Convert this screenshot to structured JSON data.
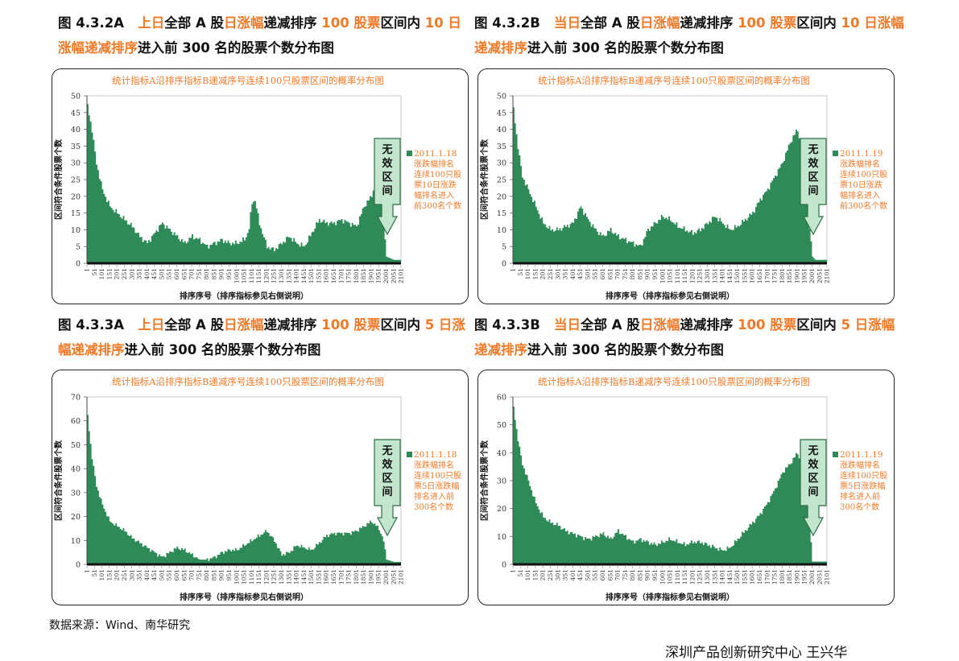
{
  "colors": {
    "accent": "#f07a28",
    "area": "#2e8b57",
    "box": "#c3e6cf",
    "box_border": "#2e6b45"
  },
  "captions": [
    {
      "prefix": "图 4.3.2A",
      "parts": [
        {
          "t": "上日",
          "hl": true
        },
        {
          "t": "全部 A 股",
          "hl": false
        },
        {
          "t": "日涨幅",
          "hl": true
        },
        {
          "t": "递减排序 ",
          "hl": false
        },
        {
          "t": "100 股票",
          "hl": true
        },
        {
          "t": "区间内 ",
          "hl": false
        },
        {
          "t": "10 日涨幅递减排序",
          "hl": true
        },
        {
          "t": "进入前 300 名的股票个数分布图",
          "hl": false
        }
      ]
    },
    {
      "prefix": "图 4.3.2B",
      "parts": [
        {
          "t": "当日",
          "hl": true
        },
        {
          "t": "全部 A 股",
          "hl": false
        },
        {
          "t": "日涨幅",
          "hl": true
        },
        {
          "t": "递减排序 ",
          "hl": false
        },
        {
          "t": "100 股票",
          "hl": true
        },
        {
          "t": "区间内 ",
          "hl": false
        },
        {
          "t": "10 日涨幅递减排序",
          "hl": true
        },
        {
          "t": "进入前 300 名的股票个数分布图",
          "hl": false
        }
      ]
    },
    {
      "prefix": "图 4.3.3A",
      "parts": [
        {
          "t": "上日",
          "hl": true
        },
        {
          "t": "全部 A 股",
          "hl": false
        },
        {
          "t": "日涨幅",
          "hl": true
        },
        {
          "t": "递减排序 ",
          "hl": false
        },
        {
          "t": "100 股票",
          "hl": true
        },
        {
          "t": "区间内 ",
          "hl": false
        },
        {
          "t": "5 日涨幅递减排序",
          "hl": true
        },
        {
          "t": "进入前 300 名的股票个数分布图",
          "hl": false
        }
      ]
    },
    {
      "prefix": "图 4.3.3B",
      "parts": [
        {
          "t": "当日",
          "hl": true
        },
        {
          "t": "全部 A 股",
          "hl": false
        },
        {
          "t": "日涨幅",
          "hl": true
        },
        {
          "t": "递减排序 ",
          "hl": false
        },
        {
          "t": "100 股票",
          "hl": true
        },
        {
          "t": "区间内 ",
          "hl": false
        },
        {
          "t": "5 日涨幅递减排序",
          "hl": true
        },
        {
          "t": "进入前 300 名的股票个数分布图",
          "hl": false
        }
      ]
    }
  ],
  "source": "数据来源：Wind、南华研究",
  "footer_partial": "深圳产品创新研究中心 王兴华",
  "chart_data": [
    {
      "type": "area",
      "title": "统计指标A沿排序指标B递减序号连续100只股票区间的概率分布图",
      "xlabel": "排序序号（排序指标参见右侧说明）",
      "ylabel": "区间符合条件股票个数",
      "ylim": [
        0,
        50
      ],
      "yticks": [
        0,
        5,
        10,
        15,
        20,
        25,
        30,
        35,
        40,
        45,
        50
      ],
      "x_start": 1,
      "x_end": 2101,
      "xtick_step": 50,
      "xticks_from": 1,
      "legend": {
        "date": "2011.1.18",
        "text": [
          "涨跌幅排名",
          "连续100只股",
          "票10日涨跌",
          "幅排名进入",
          "前300名个数"
        ]
      },
      "annotation": "无效区间",
      "x": [
        1,
        30,
        60,
        100,
        150,
        200,
        250,
        300,
        350,
        400,
        450,
        500,
        550,
        600,
        650,
        700,
        750,
        800,
        850,
        900,
        950,
        1000,
        1050,
        1080,
        1100,
        1120,
        1150,
        1200,
        1250,
        1300,
        1350,
        1400,
        1450,
        1500,
        1550,
        1600,
        1650,
        1700,
        1750,
        1800,
        1850,
        1900,
        1920,
        1950,
        1980,
        2000,
        2050,
        2101
      ],
      "y": [
        47,
        40,
        30,
        22,
        17,
        15,
        13,
        11,
        8,
        6,
        9,
        12,
        10,
        8,
        6,
        8,
        7,
        5,
        6,
        7,
        6,
        6,
        7,
        10,
        18,
        19,
        12,
        5,
        4,
        6,
        8,
        6,
        5,
        9,
        13,
        12,
        12,
        13,
        12,
        11,
        17,
        20,
        24,
        22,
        12,
        2,
        1,
        1
      ]
    },
    {
      "type": "area",
      "title": "统计指标A沿排序指标B递减序号连续100只股票区间的概率分布图",
      "xlabel": "排序序号（排序指标参见右侧说明）",
      "ylabel": "区间符合条件股票个数",
      "ylim": [
        0,
        50
      ],
      "yticks": [
        0,
        5,
        10,
        15,
        20,
        25,
        30,
        35,
        40,
        45,
        50
      ],
      "x_start": 1,
      "x_end": 2101,
      "xtick_step": 50,
      "xticks_from": 1,
      "legend": {
        "date": "2011.1.19",
        "text": [
          "涨跌幅排名",
          "连续100只股",
          "票10日涨跌",
          "幅排名进入",
          "前300名个数"
        ]
      },
      "annotation": "无效区间",
      "x": [
        1,
        30,
        60,
        100,
        150,
        200,
        250,
        300,
        350,
        400,
        450,
        500,
        550,
        600,
        650,
        700,
        750,
        800,
        850,
        900,
        950,
        1000,
        1050,
        1100,
        1150,
        1200,
        1250,
        1300,
        1350,
        1400,
        1450,
        1500,
        1550,
        1600,
        1650,
        1700,
        1750,
        1800,
        1850,
        1900,
        1950,
        1970,
        2000,
        2020,
        2050,
        2101
      ],
      "y": [
        46,
        35,
        26,
        22,
        17,
        12,
        10,
        10,
        11,
        12,
        17,
        13,
        10,
        8,
        10,
        8,
        7,
        6,
        5,
        10,
        12,
        14,
        13,
        11,
        10,
        9,
        10,
        12,
        14,
        12,
        10,
        11,
        13,
        15,
        19,
        22,
        26,
        30,
        36,
        40,
        30,
        15,
        2,
        1,
        1,
        1
      ]
    },
    {
      "type": "area",
      "title": "统计指标A沿排序指标B递减序号连续100只股票区间的概率分布图",
      "xlabel": "排序序号（排序指标参见右侧说明）",
      "ylabel": "区间符合条件股票个数",
      "ylim": [
        0,
        70
      ],
      "yticks": [
        0,
        10,
        20,
        30,
        40,
        50,
        60,
        70
      ],
      "x_start": 1,
      "x_end": 2101,
      "xtick_step": 50,
      "xticks_from": 1,
      "legend": {
        "date": "2011.1.18",
        "text": [
          "涨跌幅排名",
          "连续100只股",
          "票5日涨跌幅",
          "排名进入前",
          "300名个数"
        ]
      },
      "annotation": "无效区间",
      "x": [
        1,
        30,
        60,
        100,
        150,
        200,
        250,
        300,
        350,
        400,
        450,
        500,
        550,
        600,
        650,
        700,
        750,
        800,
        850,
        900,
        950,
        1000,
        1050,
        1100,
        1150,
        1200,
        1250,
        1300,
        1350,
        1400,
        1450,
        1500,
        1550,
        1600,
        1650,
        1700,
        1750,
        1800,
        1850,
        1900,
        1950,
        1980,
        2000,
        2050,
        2101
      ],
      "y": [
        62,
        45,
        33,
        25,
        18,
        16,
        14,
        11,
        9,
        7,
        5,
        3,
        5,
        7,
        6,
        4,
        2,
        2,
        3,
        5,
        6,
        6,
        8,
        10,
        12,
        14,
        10,
        4,
        5,
        8,
        7,
        6,
        9,
        12,
        13,
        13,
        13,
        14,
        16,
        18,
        15,
        10,
        2,
        1,
        1
      ]
    },
    {
      "type": "area",
      "title": "统计指标A沿排序指标B递减序号连续100只股票区间的概率分布图",
      "xlabel": "排序序号（排序指标参见右侧说明）",
      "ylabel": "区间符合条件股票个数",
      "ylim": [
        0,
        60
      ],
      "yticks": [
        0,
        10,
        20,
        30,
        40,
        50,
        60
      ],
      "x_start": 1,
      "x_end": 2101,
      "xtick_step": 50,
      "xticks_from": 1,
      "legend": {
        "date": "2011.1.19",
        "text": [
          "涨跌幅排名",
          "连续100只股",
          "票5日涨跌幅",
          "排名进入前",
          "300名个数"
        ]
      },
      "annotation": "无效区间",
      "x": [
        1,
        30,
        60,
        100,
        150,
        200,
        250,
        300,
        350,
        400,
        450,
        500,
        550,
        600,
        650,
        700,
        750,
        800,
        850,
        900,
        950,
        1000,
        1050,
        1100,
        1150,
        1200,
        1250,
        1300,
        1350,
        1400,
        1450,
        1500,
        1550,
        1600,
        1650,
        1700,
        1750,
        1800,
        1850,
        1900,
        1950,
        1980,
        2000,
        2050,
        2101
      ],
      "y": [
        56,
        45,
        36,
        30,
        22,
        17,
        15,
        14,
        12,
        11,
        10,
        9,
        10,
        11,
        9,
        12,
        10,
        8,
        9,
        8,
        7,
        8,
        9,
        8,
        7,
        8,
        8,
        7,
        6,
        5,
        6,
        9,
        12,
        15,
        18,
        22,
        27,
        33,
        36,
        40,
        33,
        15,
        1,
        1,
        1
      ]
    }
  ]
}
